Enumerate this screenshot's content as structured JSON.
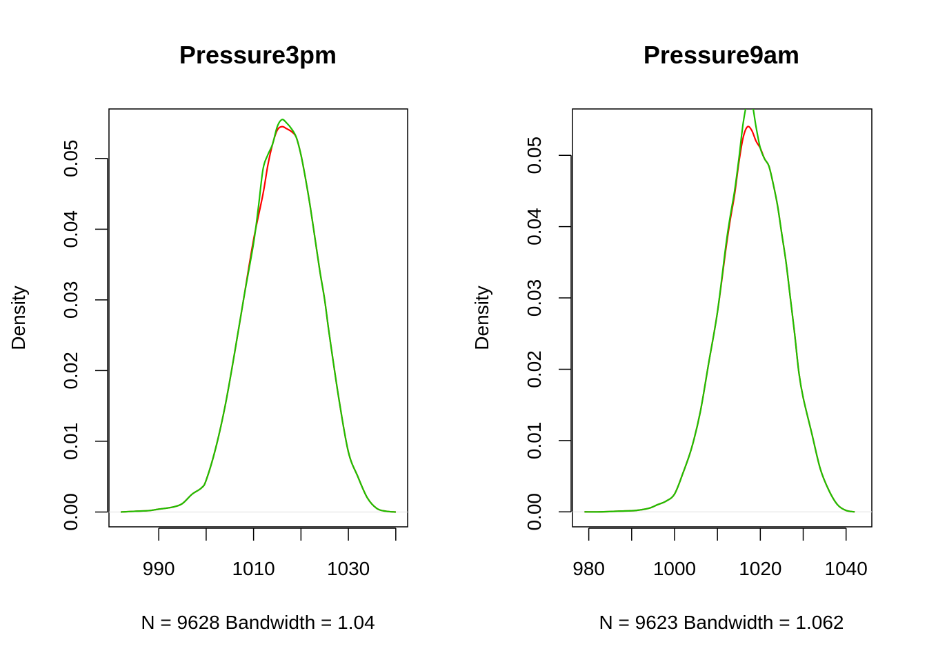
{
  "chart_data": [
    {
      "type": "line",
      "title": "Pressure3pm",
      "ylabel": "Density",
      "subtitle": "N = 9628   Bandwidth = 1.04",
      "xlim": [
        979.5,
        1042.5
      ],
      "ylim": [
        -0.0021,
        0.057
      ],
      "xticks": [
        990,
        1000,
        1010,
        1020,
        1030,
        1040
      ],
      "xtick_labels": [
        "990",
        "",
        "1010",
        "",
        "1030",
        ""
      ],
      "yticks": [
        0.0,
        0.01,
        0.02,
        0.03,
        0.04,
        0.05
      ],
      "ytick_labels": [
        "0.00",
        "0.01",
        "0.02",
        "0.03",
        "0.04",
        "0.05"
      ],
      "baseline": 0,
      "series": [
        {
          "color": "#ff0000",
          "x": [
            982,
            985,
            988,
            990,
            993,
            995,
            997,
            999,
            1000,
            1002,
            1004,
            1006,
            1008,
            1010,
            1012,
            1013,
            1014,
            1015,
            1016,
            1017,
            1018,
            1019,
            1020,
            1021,
            1022,
            1023,
            1024,
            1025,
            1026,
            1028,
            1030,
            1032,
            1034,
            1036,
            1038,
            1040
          ],
          "y": [
            0.0,
            0.0001,
            0.0002,
            0.0004,
            0.0007,
            0.0012,
            0.0025,
            0.0034,
            0.0045,
            0.009,
            0.015,
            0.0225,
            0.0305,
            0.0385,
            0.045,
            0.049,
            0.052,
            0.054,
            0.0545,
            0.0542,
            0.0538,
            0.053,
            0.0505,
            0.047,
            0.043,
            0.0385,
            0.034,
            0.03,
            0.025,
            0.016,
            0.0085,
            0.005,
            0.002,
            0.0005,
            0.0001,
            0.0
          ]
        },
        {
          "color": "#1fbf00",
          "x": [
            982,
            985,
            988,
            990,
            993,
            995,
            997,
            999,
            1000,
            1002,
            1004,
            1006,
            1008,
            1010,
            1011,
            1012,
            1013,
            1014,
            1015,
            1016,
            1017,
            1018,
            1019,
            1020,
            1021,
            1022,
            1023,
            1024,
            1025,
            1026,
            1028,
            1030,
            1032,
            1034,
            1036,
            1038,
            1040
          ],
          "y": [
            0.0,
            0.0001,
            0.0002,
            0.0004,
            0.0007,
            0.0012,
            0.0025,
            0.0034,
            0.0045,
            0.009,
            0.015,
            0.0225,
            0.0305,
            0.038,
            0.043,
            0.0485,
            0.0505,
            0.052,
            0.0545,
            0.0555,
            0.055,
            0.0542,
            0.053,
            0.0505,
            0.047,
            0.043,
            0.0385,
            0.034,
            0.03,
            0.025,
            0.016,
            0.0085,
            0.005,
            0.002,
            0.0005,
            0.0001,
            0.0
          ]
        }
      ]
    },
    {
      "type": "line",
      "title": "Pressure9am",
      "ylabel": "Density",
      "subtitle": "N = 9623   Bandwidth = 1.062",
      "xlim": [
        976.2,
        1046.0
      ],
      "ylim": [
        -0.0021,
        0.0565
      ],
      "xticks": [
        980,
        990,
        1000,
        1010,
        1020,
        1030,
        1040
      ],
      "xtick_labels": [
        "980",
        "",
        "1000",
        "",
        "1020",
        "",
        "1040"
      ],
      "yticks": [
        0.0,
        0.01,
        0.02,
        0.03,
        0.04,
        0.05
      ],
      "ytick_labels": [
        "0.00",
        "0.01",
        "0.02",
        "0.03",
        "0.04",
        "0.05"
      ],
      "baseline": 0,
      "series": [
        {
          "color": "#ff0000",
          "x": [
            979,
            983,
            987,
            991,
            994,
            996,
            998,
            1000,
            1002,
            1004,
            1006,
            1008,
            1010,
            1012,
            1013,
            1014,
            1015,
            1016,
            1017,
            1018,
            1019,
            1020,
            1021,
            1022,
            1023,
            1024,
            1025,
            1026,
            1027,
            1028,
            1029,
            1030,
            1032,
            1034,
            1036,
            1038,
            1040,
            1042
          ],
          "y": [
            0.0,
            0.0,
            0.0001,
            0.0002,
            0.0005,
            0.001,
            0.0015,
            0.0025,
            0.0055,
            0.009,
            0.014,
            0.021,
            0.028,
            0.037,
            0.041,
            0.0445,
            0.049,
            0.0525,
            0.054,
            0.0535,
            0.052,
            0.051,
            0.0495,
            0.0485,
            0.046,
            0.043,
            0.039,
            0.035,
            0.03,
            0.025,
            0.0195,
            0.016,
            0.011,
            0.006,
            0.003,
            0.001,
            0.0002,
            0.0
          ]
        },
        {
          "color": "#1fbf00",
          "x": [
            979,
            983,
            987,
            991,
            994,
            996,
            998,
            1000,
            1002,
            1004,
            1006,
            1008,
            1010,
            1012,
            1013,
            1014,
            1015,
            1016,
            1017,
            1018,
            1019,
            1020,
            1021,
            1022,
            1023,
            1024,
            1025,
            1026,
            1027,
            1028,
            1029,
            1030,
            1032,
            1034,
            1036,
            1038,
            1040,
            1042
          ],
          "y": [
            0.0,
            0.0,
            0.0001,
            0.0002,
            0.0005,
            0.001,
            0.0015,
            0.0025,
            0.0055,
            0.009,
            0.014,
            0.021,
            0.028,
            0.0375,
            0.0415,
            0.045,
            0.0495,
            0.0545,
            0.0575,
            0.0575,
            0.054,
            0.051,
            0.0495,
            0.0485,
            0.046,
            0.043,
            0.039,
            0.035,
            0.03,
            0.025,
            0.0195,
            0.016,
            0.011,
            0.006,
            0.003,
            0.001,
            0.0002,
            0.0
          ]
        }
      ]
    }
  ]
}
